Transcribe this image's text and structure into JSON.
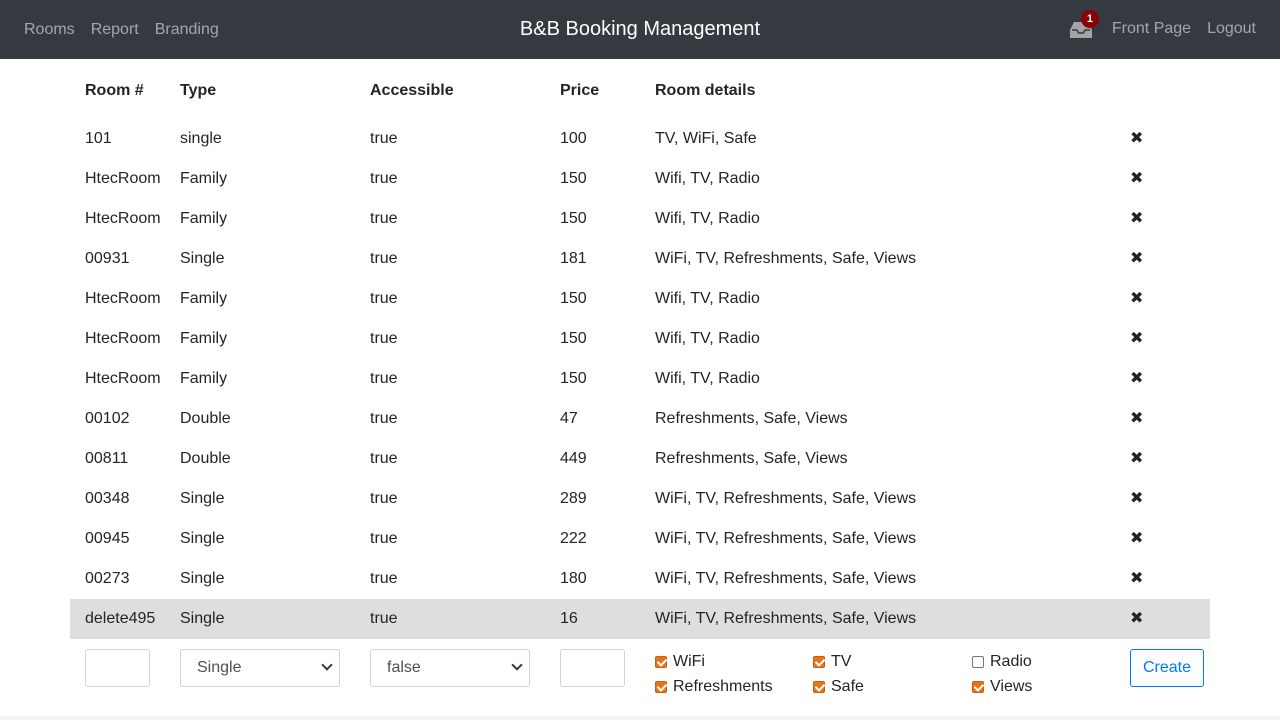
{
  "nav": {
    "links": [
      "Rooms",
      "Report",
      "Branding"
    ],
    "title": "B&B Booking Management",
    "notification_count": "1",
    "front_page": "Front Page",
    "logout": "Logout"
  },
  "table": {
    "headers": [
      "Room #",
      "Type",
      "Accessible",
      "Price",
      "Room details"
    ],
    "delete_glyph": "✖",
    "rows": [
      {
        "room": "101",
        "type": "single",
        "accessible": "true",
        "price": "100",
        "details": "TV, WiFi, Safe"
      },
      {
        "room": "HtecRoom",
        "type": "Family",
        "accessible": "true",
        "price": "150",
        "details": "Wifi, TV, Radio"
      },
      {
        "room": "HtecRoom",
        "type": "Family",
        "accessible": "true",
        "price": "150",
        "details": "Wifi, TV, Radio"
      },
      {
        "room": "00931",
        "type": "Single",
        "accessible": "true",
        "price": "181",
        "details": "WiFi, TV, Refreshments, Safe, Views"
      },
      {
        "room": "HtecRoom",
        "type": "Family",
        "accessible": "true",
        "price": "150",
        "details": "Wifi, TV, Radio"
      },
      {
        "room": "HtecRoom",
        "type": "Family",
        "accessible": "true",
        "price": "150",
        "details": "Wifi, TV, Radio"
      },
      {
        "room": "HtecRoom",
        "type": "Family",
        "accessible": "true",
        "price": "150",
        "details": "Wifi, TV, Radio"
      },
      {
        "room": "00102",
        "type": "Double",
        "accessible": "true",
        "price": "47",
        "details": "Refreshments, Safe, Views"
      },
      {
        "room": "00811",
        "type": "Double",
        "accessible": "true",
        "price": "449",
        "details": "Refreshments, Safe, Views"
      },
      {
        "room": "00348",
        "type": "Single",
        "accessible": "true",
        "price": "289",
        "details": "WiFi, TV, Refreshments, Safe, Views"
      },
      {
        "room": "00945",
        "type": "Single",
        "accessible": "true",
        "price": "222",
        "details": "WiFi, TV, Refreshments, Safe, Views"
      },
      {
        "room": "00273",
        "type": "Single",
        "accessible": "true",
        "price": "180",
        "details": "WiFi, TV, Refreshments, Safe, Views"
      },
      {
        "room": "delete495",
        "type": "Single",
        "accessible": "true",
        "price": "16",
        "details": "WiFi, TV, Refreshments, Safe, Views",
        "selected": true
      }
    ]
  },
  "form": {
    "room_value": "",
    "type_selected": "Single",
    "accessible_selected": "false",
    "price_value": "",
    "features": [
      {
        "label": "WiFi",
        "checked": true
      },
      {
        "label": "TV",
        "checked": true
      },
      {
        "label": "Radio",
        "checked": false
      },
      {
        "label": "Refreshments",
        "checked": true
      },
      {
        "label": "Safe",
        "checked": true
      },
      {
        "label": "Views",
        "checked": true
      }
    ],
    "create_label": "Create"
  },
  "colors": {
    "navbar": "#343a40",
    "checkbox_accent": "#e8741a",
    "create_button": "#007bff",
    "badge": "#8b0000"
  }
}
